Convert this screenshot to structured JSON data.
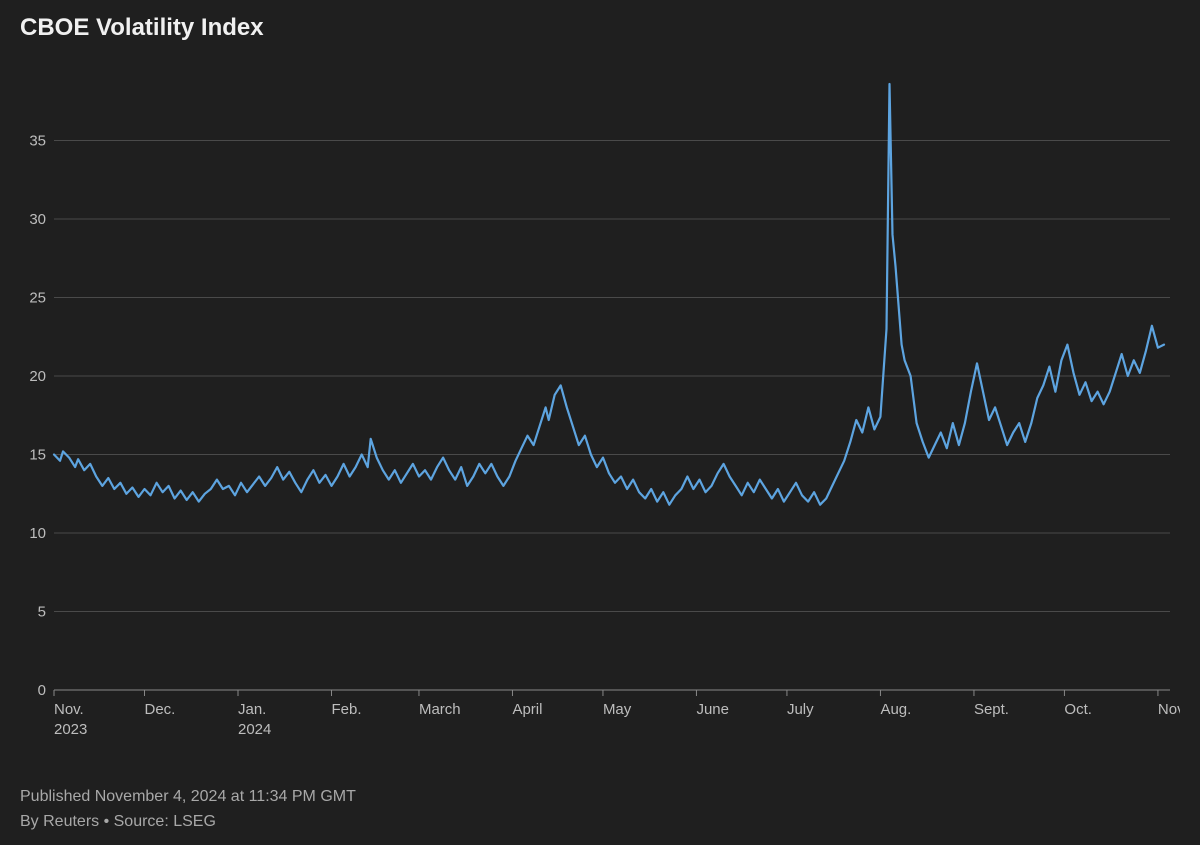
{
  "title": "CBOE Volatility Index",
  "footer": {
    "published": "Published November 4, 2024 at 11:34 PM GMT",
    "attribution": "By Reuters • Source: LSEG"
  },
  "chart": {
    "type": "line",
    "background_color": "#1f1f1f",
    "grid_color": "#4a4a4a",
    "axis_line_color": "#888888",
    "text_color": "#bdbdbd",
    "line_color": "#5da4e0",
    "line_width": 2.2,
    "y": {
      "min": 0,
      "max": 40,
      "ticks": [
        0,
        5,
        10,
        15,
        20,
        25,
        30,
        35
      ],
      "tick_label_fontsize": 15
    },
    "x": {
      "min": 0,
      "max": 370,
      "ticks": [
        {
          "pos": 0,
          "label": "Nov.",
          "sub": "2023"
        },
        {
          "pos": 30,
          "label": "Dec.",
          "sub": ""
        },
        {
          "pos": 61,
          "label": "Jan.",
          "sub": "2024"
        },
        {
          "pos": 92,
          "label": "Feb.",
          "sub": ""
        },
        {
          "pos": 121,
          "label": "March",
          "sub": ""
        },
        {
          "pos": 152,
          "label": "April",
          "sub": ""
        },
        {
          "pos": 182,
          "label": "May",
          "sub": ""
        },
        {
          "pos": 213,
          "label": "June",
          "sub": ""
        },
        {
          "pos": 243,
          "label": "July",
          "sub": ""
        },
        {
          "pos": 274,
          "label": "Aug.",
          "sub": ""
        },
        {
          "pos": 305,
          "label": "Sept.",
          "sub": ""
        },
        {
          "pos": 335,
          "label": "Oct.",
          "sub": ""
        },
        {
          "pos": 366,
          "label": "Nov.",
          "sub": ""
        }
      ],
      "tick_label_fontsize": 15
    },
    "series": [
      {
        "x": 0,
        "y": 15.0
      },
      {
        "x": 2,
        "y": 14.6
      },
      {
        "x": 3,
        "y": 15.2
      },
      {
        "x": 5,
        "y": 14.8
      },
      {
        "x": 7,
        "y": 14.2
      },
      {
        "x": 8,
        "y": 14.7
      },
      {
        "x": 10,
        "y": 14.0
      },
      {
        "x": 12,
        "y": 14.4
      },
      {
        "x": 14,
        "y": 13.6
      },
      {
        "x": 16,
        "y": 13.0
      },
      {
        "x": 18,
        "y": 13.5
      },
      {
        "x": 20,
        "y": 12.8
      },
      {
        "x": 22,
        "y": 13.2
      },
      {
        "x": 24,
        "y": 12.5
      },
      {
        "x": 26,
        "y": 12.9
      },
      {
        "x": 28,
        "y": 12.3
      },
      {
        "x": 30,
        "y": 12.8
      },
      {
        "x": 32,
        "y": 12.4
      },
      {
        "x": 34,
        "y": 13.2
      },
      {
        "x": 36,
        "y": 12.6
      },
      {
        "x": 38,
        "y": 13.0
      },
      {
        "x": 40,
        "y": 12.2
      },
      {
        "x": 42,
        "y": 12.7
      },
      {
        "x": 44,
        "y": 12.1
      },
      {
        "x": 46,
        "y": 12.6
      },
      {
        "x": 48,
        "y": 12.0
      },
      {
        "x": 50,
        "y": 12.5
      },
      {
        "x": 52,
        "y": 12.8
      },
      {
        "x": 54,
        "y": 13.4
      },
      {
        "x": 56,
        "y": 12.8
      },
      {
        "x": 58,
        "y": 13.0
      },
      {
        "x": 60,
        "y": 12.4
      },
      {
        "x": 62,
        "y": 13.2
      },
      {
        "x": 64,
        "y": 12.6
      },
      {
        "x": 66,
        "y": 13.1
      },
      {
        "x": 68,
        "y": 13.6
      },
      {
        "x": 70,
        "y": 13.0
      },
      {
        "x": 72,
        "y": 13.5
      },
      {
        "x": 74,
        "y": 14.2
      },
      {
        "x": 76,
        "y": 13.4
      },
      {
        "x": 78,
        "y": 13.9
      },
      {
        "x": 80,
        "y": 13.2
      },
      {
        "x": 82,
        "y": 12.6
      },
      {
        "x": 84,
        "y": 13.4
      },
      {
        "x": 86,
        "y": 14.0
      },
      {
        "x": 88,
        "y": 13.2
      },
      {
        "x": 90,
        "y": 13.7
      },
      {
        "x": 92,
        "y": 13.0
      },
      {
        "x": 94,
        "y": 13.6
      },
      {
        "x": 96,
        "y": 14.4
      },
      {
        "x": 98,
        "y": 13.6
      },
      {
        "x": 100,
        "y": 14.2
      },
      {
        "x": 102,
        "y": 15.0
      },
      {
        "x": 104,
        "y": 14.2
      },
      {
        "x": 105,
        "y": 16.0
      },
      {
        "x": 107,
        "y": 14.8
      },
      {
        "x": 109,
        "y": 14.0
      },
      {
        "x": 111,
        "y": 13.4
      },
      {
        "x": 113,
        "y": 14.0
      },
      {
        "x": 115,
        "y": 13.2
      },
      {
        "x": 117,
        "y": 13.8
      },
      {
        "x": 119,
        "y": 14.4
      },
      {
        "x": 121,
        "y": 13.6
      },
      {
        "x": 123,
        "y": 14.0
      },
      {
        "x": 125,
        "y": 13.4
      },
      {
        "x": 127,
        "y": 14.2
      },
      {
        "x": 129,
        "y": 14.8
      },
      {
        "x": 131,
        "y": 14.0
      },
      {
        "x": 133,
        "y": 13.4
      },
      {
        "x": 135,
        "y": 14.2
      },
      {
        "x": 137,
        "y": 13.0
      },
      {
        "x": 139,
        "y": 13.6
      },
      {
        "x": 141,
        "y": 14.4
      },
      {
        "x": 143,
        "y": 13.8
      },
      {
        "x": 145,
        "y": 14.4
      },
      {
        "x": 147,
        "y": 13.6
      },
      {
        "x": 149,
        "y": 13.0
      },
      {
        "x": 151,
        "y": 13.6
      },
      {
        "x": 153,
        "y": 14.6
      },
      {
        "x": 155,
        "y": 15.4
      },
      {
        "x": 157,
        "y": 16.2
      },
      {
        "x": 159,
        "y": 15.6
      },
      {
        "x": 161,
        "y": 16.8
      },
      {
        "x": 163,
        "y": 18.0
      },
      {
        "x": 164,
        "y": 17.2
      },
      {
        "x": 166,
        "y": 18.8
      },
      {
        "x": 168,
        "y": 19.4
      },
      {
        "x": 170,
        "y": 18.0
      },
      {
        "x": 172,
        "y": 16.8
      },
      {
        "x": 174,
        "y": 15.6
      },
      {
        "x": 176,
        "y": 16.2
      },
      {
        "x": 178,
        "y": 15.0
      },
      {
        "x": 180,
        "y": 14.2
      },
      {
        "x": 182,
        "y": 14.8
      },
      {
        "x": 184,
        "y": 13.8
      },
      {
        "x": 186,
        "y": 13.2
      },
      {
        "x": 188,
        "y": 13.6
      },
      {
        "x": 190,
        "y": 12.8
      },
      {
        "x": 192,
        "y": 13.4
      },
      {
        "x": 194,
        "y": 12.6
      },
      {
        "x": 196,
        "y": 12.2
      },
      {
        "x": 198,
        "y": 12.8
      },
      {
        "x": 200,
        "y": 12.0
      },
      {
        "x": 202,
        "y": 12.6
      },
      {
        "x": 204,
        "y": 11.8
      },
      {
        "x": 206,
        "y": 12.4
      },
      {
        "x": 208,
        "y": 12.8
      },
      {
        "x": 210,
        "y": 13.6
      },
      {
        "x": 212,
        "y": 12.8
      },
      {
        "x": 214,
        "y": 13.4
      },
      {
        "x": 216,
        "y": 12.6
      },
      {
        "x": 218,
        "y": 13.0
      },
      {
        "x": 220,
        "y": 13.8
      },
      {
        "x": 222,
        "y": 14.4
      },
      {
        "x": 224,
        "y": 13.6
      },
      {
        "x": 226,
        "y": 13.0
      },
      {
        "x": 228,
        "y": 12.4
      },
      {
        "x": 230,
        "y": 13.2
      },
      {
        "x": 232,
        "y": 12.6
      },
      {
        "x": 234,
        "y": 13.4
      },
      {
        "x": 236,
        "y": 12.8
      },
      {
        "x": 238,
        "y": 12.2
      },
      {
        "x": 240,
        "y": 12.8
      },
      {
        "x": 242,
        "y": 12.0
      },
      {
        "x": 244,
        "y": 12.6
      },
      {
        "x": 246,
        "y": 13.2
      },
      {
        "x": 248,
        "y": 12.4
      },
      {
        "x": 250,
        "y": 12.0
      },
      {
        "x": 252,
        "y": 12.6
      },
      {
        "x": 254,
        "y": 11.8
      },
      {
        "x": 256,
        "y": 12.2
      },
      {
        "x": 258,
        "y": 13.0
      },
      {
        "x": 260,
        "y": 13.8
      },
      {
        "x": 262,
        "y": 14.6
      },
      {
        "x": 264,
        "y": 15.8
      },
      {
        "x": 266,
        "y": 17.2
      },
      {
        "x": 268,
        "y": 16.4
      },
      {
        "x": 270,
        "y": 18.0
      },
      {
        "x": 272,
        "y": 16.6
      },
      {
        "x": 274,
        "y": 17.4
      },
      {
        "x": 276,
        "y": 23.0
      },
      {
        "x": 277,
        "y": 38.6
      },
      {
        "x": 278,
        "y": 29.0
      },
      {
        "x": 279,
        "y": 27.0
      },
      {
        "x": 281,
        "y": 22.0
      },
      {
        "x": 282,
        "y": 21.0
      },
      {
        "x": 284,
        "y": 20.0
      },
      {
        "x": 286,
        "y": 17.0
      },
      {
        "x": 288,
        "y": 15.8
      },
      {
        "x": 290,
        "y": 14.8
      },
      {
        "x": 292,
        "y": 15.6
      },
      {
        "x": 294,
        "y": 16.4
      },
      {
        "x": 296,
        "y": 15.4
      },
      {
        "x": 298,
        "y": 17.0
      },
      {
        "x": 300,
        "y": 15.6
      },
      {
        "x": 302,
        "y": 17.0
      },
      {
        "x": 304,
        "y": 19.0
      },
      {
        "x": 306,
        "y": 20.8
      },
      {
        "x": 308,
        "y": 19.0
      },
      {
        "x": 310,
        "y": 17.2
      },
      {
        "x": 312,
        "y": 18.0
      },
      {
        "x": 314,
        "y": 16.8
      },
      {
        "x": 316,
        "y": 15.6
      },
      {
        "x": 318,
        "y": 16.4
      },
      {
        "x": 320,
        "y": 17.0
      },
      {
        "x": 322,
        "y": 15.8
      },
      {
        "x": 324,
        "y": 17.0
      },
      {
        "x": 326,
        "y": 18.6
      },
      {
        "x": 328,
        "y": 19.4
      },
      {
        "x": 330,
        "y": 20.6
      },
      {
        "x": 332,
        "y": 19.0
      },
      {
        "x": 334,
        "y": 21.0
      },
      {
        "x": 336,
        "y": 22.0
      },
      {
        "x": 338,
        "y": 20.2
      },
      {
        "x": 340,
        "y": 18.8
      },
      {
        "x": 342,
        "y": 19.6
      },
      {
        "x": 344,
        "y": 18.4
      },
      {
        "x": 346,
        "y": 19.0
      },
      {
        "x": 348,
        "y": 18.2
      },
      {
        "x": 350,
        "y": 19.0
      },
      {
        "x": 352,
        "y": 20.2
      },
      {
        "x": 354,
        "y": 21.4
      },
      {
        "x": 356,
        "y": 20.0
      },
      {
        "x": 358,
        "y": 21.0
      },
      {
        "x": 360,
        "y": 20.2
      },
      {
        "x": 362,
        "y": 21.6
      },
      {
        "x": 364,
        "y": 23.2
      },
      {
        "x": 366,
        "y": 21.8
      },
      {
        "x": 368,
        "y": 22.0
      }
    ]
  }
}
